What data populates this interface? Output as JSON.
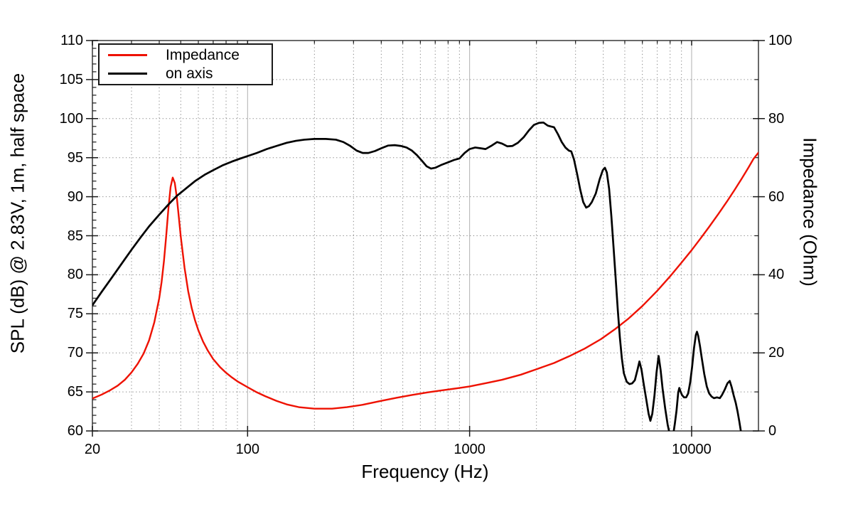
{
  "figure": {
    "background": "#ffffff",
    "frame_color": "#444444",
    "grid_major_color": "#b0b0b0",
    "grid_minor_color": "#878787",
    "tick_color": "#1a1a1a"
  },
  "legend": {
    "items": [
      {
        "label": "Impedance",
        "color": "#ee1100"
      },
      {
        "label": "on axis",
        "color": "#000000"
      }
    ]
  },
  "axes": {
    "x": {
      "label": "Frequency (Hz)",
      "scale": "log",
      "min": 20,
      "max": 20000,
      "major_ticks": [
        20,
        100,
        1000,
        10000
      ],
      "major_tick_labels": [
        "20",
        "100",
        "1000",
        "10000"
      ],
      "minor_ticks": [
        30,
        40,
        50,
        60,
        70,
        80,
        90,
        200,
        300,
        400,
        500,
        600,
        700,
        800,
        900,
        2000,
        3000,
        4000,
        5000,
        6000,
        7000,
        8000,
        9000
      ]
    },
    "y_left": {
      "label": "SPL (dB) @ 2.83V, 1m, half space",
      "min": 60,
      "max": 110,
      "major_step": 5,
      "minor_step": 1,
      "major_ticks": [
        60,
        65,
        70,
        75,
        80,
        85,
        90,
        95,
        100,
        105,
        110
      ],
      "major_tick_labels": [
        "60",
        "65",
        "70",
        "75",
        "80",
        "85",
        "90",
        "95",
        "100",
        "105",
        "110"
      ]
    },
    "y_right": {
      "label": "Impedance (Ohm)",
      "min": 0,
      "max": 100,
      "major_step": 20,
      "minor_step": 10,
      "major_ticks": [
        0,
        20,
        40,
        60,
        80,
        100
      ],
      "major_tick_labels": [
        "0",
        "20",
        "40",
        "60",
        "80",
        "100"
      ],
      "minor_ticks": [
        10,
        30,
        50,
        70,
        90
      ]
    }
  },
  "chart_data": {
    "type": "line",
    "title": "",
    "xlabel": "Frequency (Hz)",
    "x_scale": "log",
    "xlim": [
      20,
      20000
    ],
    "ylabel_left": "SPL (dB) @ 2.83V, 1m, half space",
    "ylim_left": [
      60,
      110
    ],
    "ylabel_right": "Impedance (Ohm)",
    "ylim_right": [
      0,
      100
    ],
    "grid": true,
    "legend_position": "top-left",
    "series": [
      {
        "name": "Impedance",
        "axis": "right",
        "color": "#ee1100",
        "units": "Ohm",
        "points": [
          [
            20,
            8.3
          ],
          [
            22,
            9.3
          ],
          [
            24,
            10.4
          ],
          [
            26,
            11.6
          ],
          [
            28,
            13.1
          ],
          [
            30,
            15.0
          ],
          [
            32,
            17.2
          ],
          [
            34,
            19.8
          ],
          [
            36,
            23.2
          ],
          [
            38,
            27.8
          ],
          [
            40,
            34.0
          ],
          [
            41,
            38.2
          ],
          [
            42,
            43.5
          ],
          [
            43,
            50.0
          ],
          [
            44,
            57.0
          ],
          [
            45,
            62.5
          ],
          [
            46,
            64.9
          ],
          [
            47,
            63.5
          ],
          [
            48,
            59.8
          ],
          [
            49,
            54.8
          ],
          [
            50,
            49.8
          ],
          [
            52,
            41.8
          ],
          [
            54,
            35.8
          ],
          [
            56,
            31.5
          ],
          [
            58,
            28.3
          ],
          [
            60,
            25.8
          ],
          [
            63,
            22.9
          ],
          [
            66,
            20.7
          ],
          [
            70,
            18.4
          ],
          [
            75,
            16.4
          ],
          [
            80,
            14.9
          ],
          [
            85,
            13.7
          ],
          [
            90,
            12.7
          ],
          [
            100,
            11.2
          ],
          [
            110,
            9.9
          ],
          [
            120,
            8.9
          ],
          [
            135,
            7.7
          ],
          [
            150,
            6.8
          ],
          [
            170,
            6.1
          ],
          [
            200,
            5.7
          ],
          [
            240,
            5.7
          ],
          [
            280,
            6.1
          ],
          [
            330,
            6.7
          ],
          [
            400,
            7.7
          ],
          [
            470,
            8.5
          ],
          [
            550,
            9.2
          ],
          [
            650,
            9.9
          ],
          [
            750,
            10.4
          ],
          [
            900,
            11.0
          ],
          [
            1000,
            11.4
          ],
          [
            1200,
            12.3
          ],
          [
            1400,
            13.1
          ],
          [
            1700,
            14.4
          ],
          [
            2000,
            15.8
          ],
          [
            2400,
            17.4
          ],
          [
            2800,
            19.1
          ],
          [
            3300,
            21.1
          ],
          [
            3900,
            23.5
          ],
          [
            4500,
            26.0
          ],
          [
            5200,
            28.8
          ],
          [
            6000,
            32.0
          ],
          [
            7000,
            35.9
          ],
          [
            8000,
            39.6
          ],
          [
            9000,
            43.1
          ],
          [
            10000,
            46.3
          ],
          [
            11000,
            49.4
          ],
          [
            12000,
            52.3
          ],
          [
            13200,
            55.6
          ],
          [
            14400,
            58.7
          ],
          [
            15600,
            61.7
          ],
          [
            16800,
            64.6
          ],
          [
            18000,
            67.4
          ],
          [
            19000,
            69.7
          ],
          [
            20000,
            71.3
          ]
        ]
      },
      {
        "name": "on axis",
        "axis": "left",
        "color": "#000000",
        "units": "dB",
        "points": [
          [
            20,
            76.1
          ],
          [
            22,
            77.8
          ],
          [
            24,
            79.3
          ],
          [
            26,
            80.7
          ],
          [
            28,
            82.0
          ],
          [
            30,
            83.2
          ],
          [
            33,
            84.8
          ],
          [
            36,
            86.2
          ],
          [
            40,
            87.7
          ],
          [
            44,
            89.0
          ],
          [
            48,
            90.1
          ],
          [
            53,
            91.1
          ],
          [
            58,
            92.0
          ],
          [
            64,
            92.8
          ],
          [
            70,
            93.4
          ],
          [
            77,
            94.0
          ],
          [
            85,
            94.5
          ],
          [
            93,
            94.9
          ],
          [
            100,
            95.2
          ],
          [
            110,
            95.6
          ],
          [
            122,
            96.1
          ],
          [
            135,
            96.5
          ],
          [
            150,
            96.9
          ],
          [
            165,
            97.15
          ],
          [
            180,
            97.3
          ],
          [
            200,
            97.4
          ],
          [
            225,
            97.4
          ],
          [
            250,
            97.3
          ],
          [
            270,
            97.0
          ],
          [
            290,
            96.5
          ],
          [
            310,
            95.9
          ],
          [
            330,
            95.6
          ],
          [
            350,
            95.6
          ],
          [
            375,
            95.85
          ],
          [
            400,
            96.2
          ],
          [
            430,
            96.55
          ],
          [
            460,
            96.6
          ],
          [
            490,
            96.5
          ],
          [
            520,
            96.3
          ],
          [
            550,
            95.9
          ],
          [
            580,
            95.3
          ],
          [
            610,
            94.6
          ],
          [
            640,
            93.9
          ],
          [
            670,
            93.6
          ],
          [
            700,
            93.7
          ],
          [
            750,
            94.1
          ],
          [
            800,
            94.4
          ],
          [
            850,
            94.7
          ],
          [
            900,
            94.9
          ],
          [
            950,
            95.6
          ],
          [
            1000,
            96.1
          ],
          [
            1060,
            96.3
          ],
          [
            1120,
            96.2
          ],
          [
            1180,
            96.1
          ],
          [
            1250,
            96.5
          ],
          [
            1330,
            97.0
          ],
          [
            1400,
            96.8
          ],
          [
            1480,
            96.45
          ],
          [
            1560,
            96.5
          ],
          [
            1650,
            96.9
          ],
          [
            1750,
            97.6
          ],
          [
            1850,
            98.5
          ],
          [
            1950,
            99.2
          ],
          [
            2050,
            99.45
          ],
          [
            2150,
            99.5
          ],
          [
            2250,
            99.1
          ],
          [
            2320,
            99.0
          ],
          [
            2400,
            98.9
          ],
          [
            2500,
            98.0
          ],
          [
            2600,
            97.0
          ],
          [
            2700,
            96.3
          ],
          [
            2800,
            95.9
          ],
          [
            2870,
            95.8
          ],
          [
            2950,
            94.8
          ],
          [
            3050,
            92.9
          ],
          [
            3150,
            90.9
          ],
          [
            3250,
            89.3
          ],
          [
            3350,
            88.6
          ],
          [
            3450,
            88.8
          ],
          [
            3550,
            89.3
          ],
          [
            3700,
            90.4
          ],
          [
            3850,
            92.2
          ],
          [
            3980,
            93.4
          ],
          [
            4070,
            93.7
          ],
          [
            4150,
            93.1
          ],
          [
            4250,
            91.0
          ],
          [
            4350,
            87.5
          ],
          [
            4450,
            83.5
          ],
          [
            4550,
            79.5
          ],
          [
            4650,
            75.5
          ],
          [
            4750,
            72.0
          ],
          [
            4850,
            69.3
          ],
          [
            4950,
            67.4
          ],
          [
            5100,
            66.3
          ],
          [
            5250,
            66.0
          ],
          [
            5400,
            66.1
          ],
          [
            5550,
            66.5
          ],
          [
            5700,
            67.8
          ],
          [
            5820,
            68.9
          ],
          [
            5950,
            67.8
          ],
          [
            6100,
            65.8
          ],
          [
            6250,
            64.0
          ],
          [
            6400,
            62.2
          ],
          [
            6520,
            61.3
          ],
          [
            6650,
            62.2
          ],
          [
            6800,
            64.5
          ],
          [
            6950,
            67.5
          ],
          [
            7100,
            69.6
          ],
          [
            7250,
            67.8
          ],
          [
            7400,
            65.4
          ],
          [
            7600,
            62.9
          ],
          [
            7800,
            60.8
          ],
          [
            7950,
            59.7
          ],
          [
            8100,
            58.8
          ],
          [
            8250,
            59.4
          ],
          [
            8400,
            60.9
          ],
          [
            8550,
            62.6
          ],
          [
            8700,
            64.9
          ],
          [
            8800,
            65.5
          ],
          [
            8900,
            65.1
          ],
          [
            9050,
            64.6
          ],
          [
            9250,
            64.3
          ],
          [
            9450,
            64.3
          ],
          [
            9650,
            64.8
          ],
          [
            9850,
            66.2
          ],
          [
            10050,
            68.2
          ],
          [
            10250,
            70.6
          ],
          [
            10450,
            72.3
          ],
          [
            10570,
            72.7
          ],
          [
            10700,
            72.2
          ],
          [
            10900,
            70.9
          ],
          [
            11100,
            69.4
          ],
          [
            11400,
            67.3
          ],
          [
            11700,
            65.7
          ],
          [
            12000,
            64.8
          ],
          [
            12300,
            64.4
          ],
          [
            12600,
            64.2
          ],
          [
            13000,
            64.3
          ],
          [
            13400,
            64.2
          ],
          [
            13700,
            64.6
          ],
          [
            14100,
            65.3
          ],
          [
            14500,
            66.1
          ],
          [
            14850,
            66.4
          ],
          [
            15150,
            65.6
          ],
          [
            15450,
            64.6
          ],
          [
            15800,
            63.6
          ],
          [
            16100,
            62.5
          ],
          [
            16400,
            61.2
          ],
          [
            16700,
            59.8
          ],
          [
            17000,
            58.3
          ]
        ]
      }
    ]
  }
}
